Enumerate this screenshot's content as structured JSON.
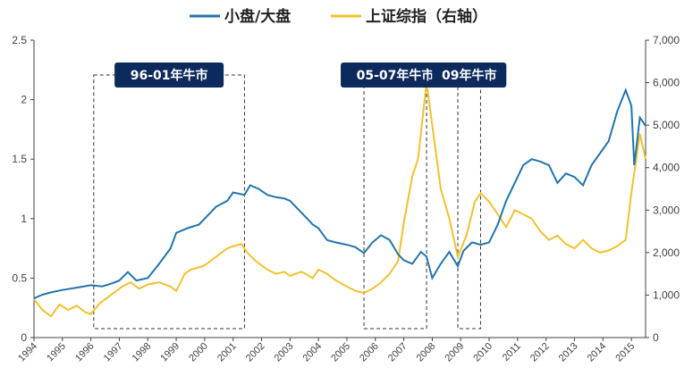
{
  "chart_data": {
    "type": "line",
    "legend": {
      "position": "top",
      "entries": [
        "小盘/大盘",
        "上证综指（右轴）"
      ]
    },
    "colors": {
      "small_large": "#2374ab",
      "shanghai": "#f2c12e",
      "label_box": "#0d2a5c",
      "axis": "#404040"
    },
    "x_categories": [
      "1994",
      "1995",
      "1996",
      "1997",
      "1998",
      "1999",
      "2000",
      "2001",
      "2002",
      "2003",
      "2004",
      "2005",
      "2006",
      "2007",
      "2008",
      "2009",
      "2010",
      "2011",
      "2012",
      "2013",
      "2014",
      "2015"
    ],
    "y_left": {
      "ylim": [
        0,
        2.5
      ],
      "ticks": [
        "0",
        "0.5",
        "1",
        "1.5",
        "2",
        "2.5"
      ]
    },
    "y_right": {
      "ylim": [
        0,
        7000
      ],
      "ticks": [
        "0",
        "1,000",
        "2,000",
        "3,000",
        "4,000",
        "5,000",
        "6,000",
        "7,000"
      ]
    },
    "grid": false,
    "annotations": [
      {
        "label": "96-01年牛市",
        "x_start": 1996.1,
        "x_end": 2001.4
      },
      {
        "label": "05-07年牛市",
        "x_start": 2005.6,
        "x_end": 2007.8
      },
      {
        "label": "09年牛市",
        "x_start": 2008.9,
        "x_end": 2009.7
      }
    ],
    "series": [
      {
        "name": "小盘/大盘",
        "axis": "left",
        "x": [
          1994.0,
          1994.3,
          1994.6,
          1995.0,
          1995.5,
          1996.0,
          1996.4,
          1996.8,
          1997.0,
          1997.3,
          1997.6,
          1998.0,
          1998.4,
          1998.8,
          1999.0,
          1999.4,
          1999.8,
          2000.0,
          2000.4,
          2000.8,
          2001.0,
          2001.4,
          2001.6,
          2001.9,
          2002.2,
          2002.5,
          2002.8,
          2003.0,
          2003.4,
          2003.8,
          2004.0,
          2004.3,
          2004.6,
          2005.0,
          2005.3,
          2005.6,
          2005.9,
          2006.2,
          2006.5,
          2006.8,
          2007.0,
          2007.3,
          2007.6,
          2007.8,
          2008.0,
          2008.3,
          2008.6,
          2008.9,
          2009.1,
          2009.4,
          2009.7,
          2010.0,
          2010.3,
          2010.6,
          2010.9,
          2011.2,
          2011.5,
          2011.8,
          2012.1,
          2012.4,
          2012.7,
          2013.0,
          2013.3,
          2013.6,
          2013.9,
          2014.2,
          2014.5,
          2014.8,
          2015.0,
          2015.1,
          2015.3,
          2015.5
        ],
        "values": [
          0.33,
          0.36,
          0.38,
          0.4,
          0.42,
          0.44,
          0.43,
          0.46,
          0.48,
          0.55,
          0.48,
          0.5,
          0.62,
          0.75,
          0.88,
          0.92,
          0.95,
          1.0,
          1.1,
          1.15,
          1.22,
          1.2,
          1.28,
          1.25,
          1.2,
          1.18,
          1.17,
          1.15,
          1.05,
          0.95,
          0.92,
          0.82,
          0.8,
          0.78,
          0.76,
          0.71,
          0.8,
          0.86,
          0.82,
          0.7,
          0.65,
          0.62,
          0.72,
          0.68,
          0.5,
          0.62,
          0.72,
          0.6,
          0.73,
          0.8,
          0.78,
          0.8,
          0.95,
          1.15,
          1.3,
          1.45,
          1.5,
          1.48,
          1.45,
          1.3,
          1.38,
          1.35,
          1.28,
          1.45,
          1.55,
          1.65,
          1.9,
          2.08,
          1.95,
          1.45,
          1.85,
          1.78
        ]
      },
      {
        "name": "上证综指（右轴）",
        "axis": "right",
        "x": [
          1994.0,
          1994.3,
          1994.6,
          1994.9,
          1995.2,
          1995.5,
          1995.8,
          1996.0,
          1996.3,
          1996.6,
          1996.9,
          1997.1,
          1997.4,
          1997.7,
          1998.0,
          1998.4,
          1998.8,
          1999.0,
          1999.3,
          1999.5,
          1999.8,
          2000.0,
          2000.4,
          2000.8,
          2001.0,
          2001.3,
          2001.5,
          2001.8,
          2002.2,
          2002.5,
          2002.8,
          2003.0,
          2003.4,
          2003.8,
          2004.0,
          2004.3,
          2004.6,
          2005.0,
          2005.3,
          2005.6,
          2005.9,
          2006.2,
          2006.5,
          2006.8,
          2007.0,
          2007.3,
          2007.5,
          2007.8,
          2008.0,
          2008.3,
          2008.6,
          2008.9,
          2009.2,
          2009.5,
          2009.7,
          2010.0,
          2010.3,
          2010.6,
          2010.9,
          2011.2,
          2011.5,
          2011.8,
          2012.1,
          2012.4,
          2012.7,
          2013.0,
          2013.3,
          2013.6,
          2013.9,
          2014.2,
          2014.5,
          2014.8,
          2015.0,
          2015.3,
          2015.5
        ],
        "values": [
          900,
          650,
          500,
          780,
          650,
          750,
          600,
          550,
          800,
          950,
          1100,
          1200,
          1300,
          1150,
          1250,
          1300,
          1200,
          1100,
          1500,
          1600,
          1650,
          1700,
          1900,
          2100,
          2150,
          2200,
          2000,
          1800,
          1600,
          1500,
          1550,
          1450,
          1550,
          1400,
          1600,
          1500,
          1350,
          1200,
          1100,
          1050,
          1150,
          1300,
          1500,
          1800,
          2700,
          3800,
          4200,
          6000,
          5000,
          3500,
          2800,
          1900,
          2400,
          3200,
          3400,
          3200,
          2900,
          2600,
          3000,
          2900,
          2800,
          2500,
          2300,
          2400,
          2200,
          2100,
          2300,
          2100,
          2000,
          2050,
          2150,
          2300,
          3400,
          4800,
          4200
        ]
      }
    ]
  }
}
